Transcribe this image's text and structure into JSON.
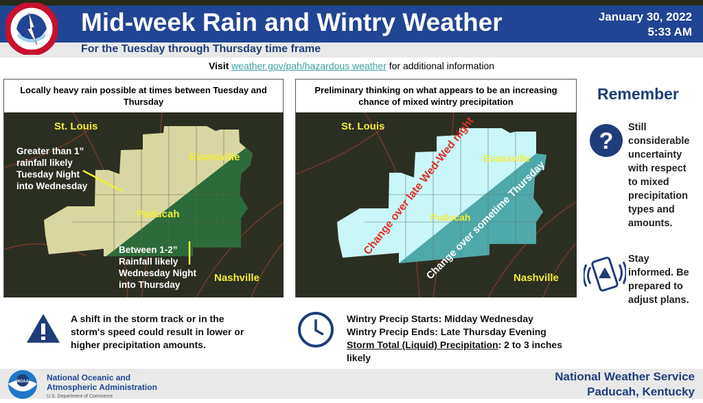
{
  "header": {
    "title": "Mid-week Rain and Wintry Weather",
    "subtitle": "For the Tuesday through Thursday time frame",
    "date": "January 30, 2022",
    "time": "5:33 AM",
    "logo_text": "NATIONAL WEATHER SERVICE"
  },
  "visit": {
    "prefix": "Visit",
    "link": "weather.gov/pah/hazardous weather",
    "suffix": "for additional information"
  },
  "left_panel": {
    "title": "Locally heavy rain possible at times between Tuesday and Thursday",
    "cities": {
      "st_louis": "St. Louis",
      "evansville": "Evansville",
      "paducah": "Paducah",
      "nashville": "Nashville"
    },
    "annotation_1": [
      "Greater than 1”",
      "rainfall likely",
      "Tuesday Night",
      "into Wednesday"
    ],
    "annotation_2": [
      "Between 1-2”",
      "Rainfall likely",
      "Wednesday Night",
      "into Thursday"
    ],
    "colors": {
      "heavy": "#d9d7a1",
      "moderate": "#2c6b3b"
    }
  },
  "right_panel": {
    "title": "Preliminary thinking on what appears to be an increasing chance of mixed wintry precipitation",
    "cities": {
      "st_louis": "St. Louis",
      "evansville": "Evansville",
      "paducah": "Paducah",
      "nashville": "Nashville"
    },
    "zone_1": "Change over late Wed-Wed night",
    "zone_2": "Change over sometime Thursday",
    "colors": {
      "zone_1": "#c9f6f6",
      "zone_2": "#4fa9a8"
    }
  },
  "remember": {
    "title": "Remember",
    "item_1": [
      "Still",
      "considerable",
      "uncertainty",
      "with respect",
      "to mixed",
      "precipitation",
      "types and",
      "amounts."
    ],
    "item_2": [
      "Stay",
      "informed. Be",
      "prepared to",
      "adjust plans."
    ]
  },
  "bottom": {
    "warning": [
      "A shift in the storm track or in the",
      "storm's speed could result in lower or",
      "higher precipitation amounts."
    ],
    "starts": "Wintry Precip Starts: Midday Wednesday",
    "ends": "Wintry Precip Ends: Late Thursday Evening",
    "total_label": "Storm Total (Liquid) Precipitation",
    "total_value": ": 2 to 3 inches",
    "total_value_2": "likely"
  },
  "footer": {
    "noaa_1": "National Oceanic and",
    "noaa_2": "Atmospheric Administration",
    "noaa_3": "U.S. Department of Commerce",
    "noaa_logo": "NOAA",
    "nws_1": "National Weather Service",
    "nws_2": "Paducah, Kentucky"
  }
}
